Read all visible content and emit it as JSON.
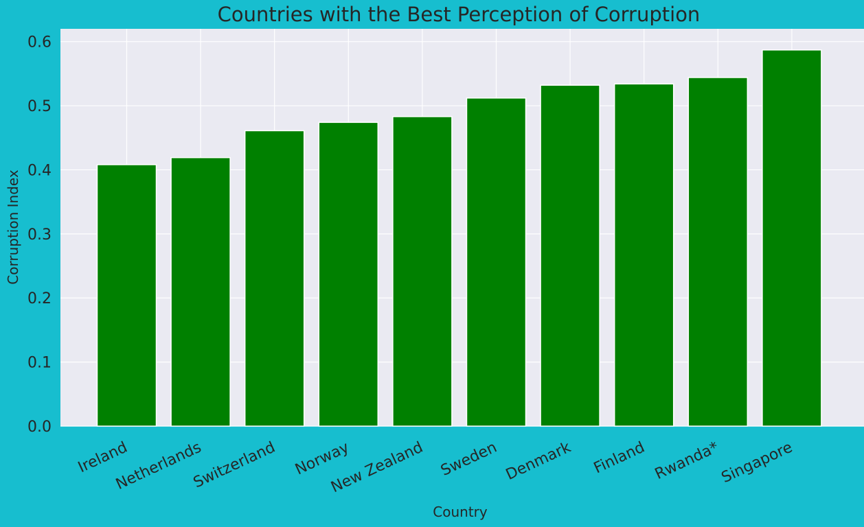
{
  "figure": {
    "background": "#17becf",
    "plot_background": "#eaeaf2",
    "grid_color": "#ffffff",
    "text_color": "#262626"
  },
  "chart_data": {
    "type": "bar",
    "title": "Countries with the Best Perception of Corruption",
    "xlabel": "Country",
    "ylabel": "Corruption Index",
    "categories": [
      "Ireland",
      "Netherlands",
      "Switzerland",
      "Norway",
      "New Zealand",
      "Sweden",
      "Denmark",
      "Finland",
      "Rwanda*",
      "Singapore"
    ],
    "values": [
      0.408,
      0.419,
      0.461,
      0.474,
      0.483,
      0.512,
      0.532,
      0.534,
      0.544,
      0.587
    ],
    "ylim": [
      0,
      0.62
    ],
    "yticks": [
      "0.0",
      "0.1",
      "0.2",
      "0.3",
      "0.4",
      "0.5",
      "0.6"
    ],
    "bar_color": "#008000",
    "bar_edge_color": "#ffffff",
    "grid": true,
    "legend": "none"
  }
}
